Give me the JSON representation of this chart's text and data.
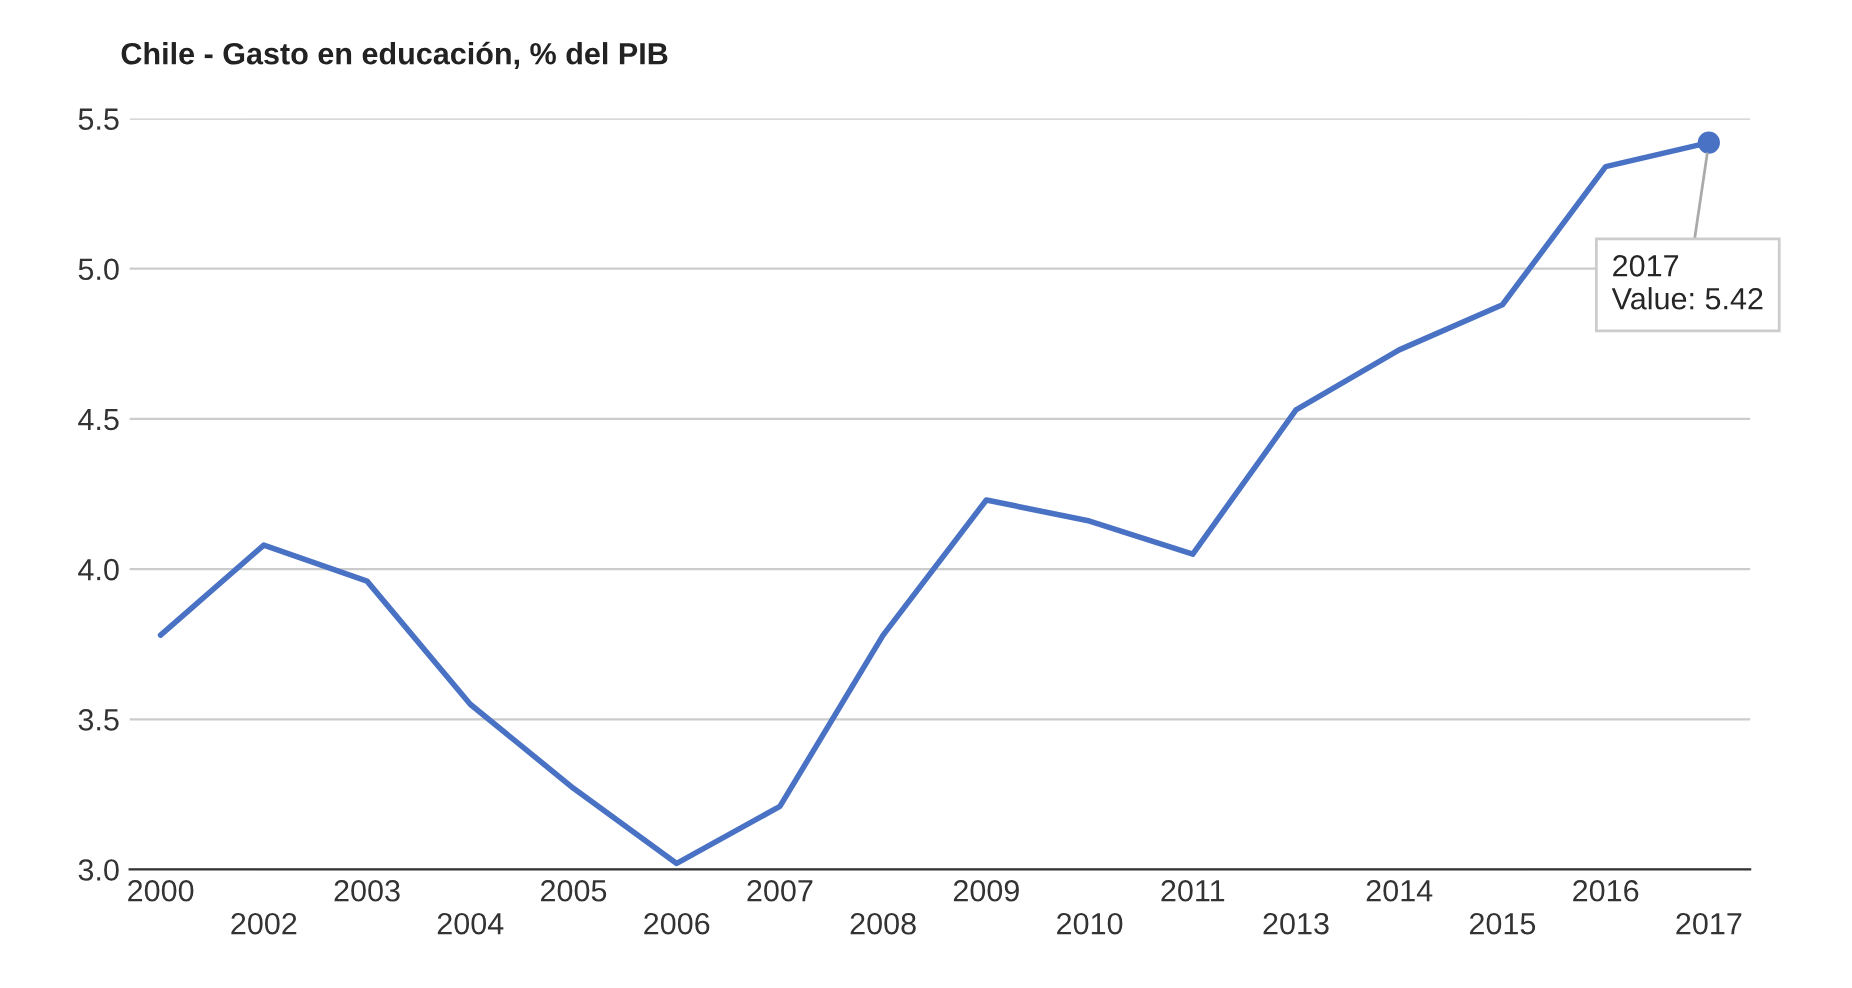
{
  "chart_data": {
    "type": "line",
    "title": "Chile - Gasto en educación, % del PIB",
    "categories": [
      "2000",
      "2002",
      "2003",
      "2004",
      "2005",
      "2006",
      "2007",
      "2008",
      "2009",
      "2010",
      "2011",
      "2013",
      "2014",
      "2015",
      "2016",
      "2017"
    ],
    "series": [
      {
        "color": "#4a72c4",
        "values": [
          3.78,
          4.08,
          3.96,
          3.55,
          3.27,
          3.02,
          3.21,
          3.78,
          4.23,
          4.16,
          4.05,
          4.53,
          4.73,
          4.88,
          5.34,
          5.42
        ]
      }
    ],
    "ylim": [
      3.0,
      5.5
    ],
    "yticks": [
      {
        "value": 3,
        "label": "3.0"
      },
      3.5,
      {
        "value": 4,
        "label": "4.0"
      },
      4.5,
      {
        "value": 5,
        "label": "5.0"
      },
      5.5
    ],
    "grid": "y",
    "legend": false,
    "marker": "none",
    "line_style": "solid",
    "annotations": [
      {
        "text": "2017\nValue: 5.42",
        "x": "2017",
        "y": 5.42
      }
    ]
  }
}
